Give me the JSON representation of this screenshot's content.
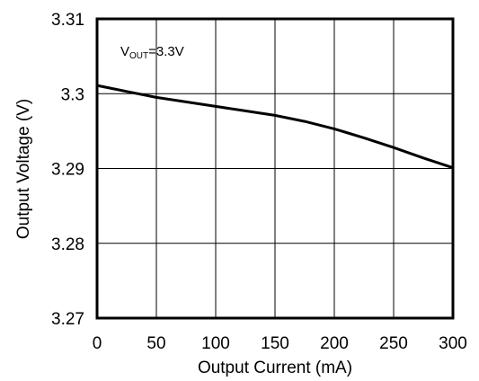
{
  "chart_data": {
    "type": "line",
    "title": "",
    "xlabel": "Output Current (mA)",
    "ylabel": "Output Voltage (V)",
    "xlim": [
      0,
      300
    ],
    "ylim": [
      3.27,
      3.31
    ],
    "xticks": [
      0,
      50,
      100,
      150,
      200,
      250,
      300
    ],
    "yticks": [
      3.27,
      3.28,
      3.29,
      3.3,
      3.31
    ],
    "xtick_labels": [
      "0",
      "50",
      "100",
      "150",
      "200",
      "250",
      "300"
    ],
    "ytick_labels": [
      "3.27",
      "3.28",
      "3.29",
      "3.3",
      "3.31"
    ],
    "grid": true,
    "annotation": {
      "prefix": "V",
      "subscript": "OUT",
      "suffix": "=3.3V"
    },
    "series": [
      {
        "color": "#000000",
        "x": [
          0,
          25,
          50,
          75,
          100,
          125,
          150,
          175,
          200,
          225,
          250,
          275,
          300
        ],
        "y": [
          3.3011,
          3.3003,
          3.2995,
          3.2989,
          3.2983,
          3.2977,
          3.2971,
          3.2963,
          3.2953,
          3.2941,
          3.2928,
          3.2914,
          3.2901
        ]
      }
    ]
  }
}
